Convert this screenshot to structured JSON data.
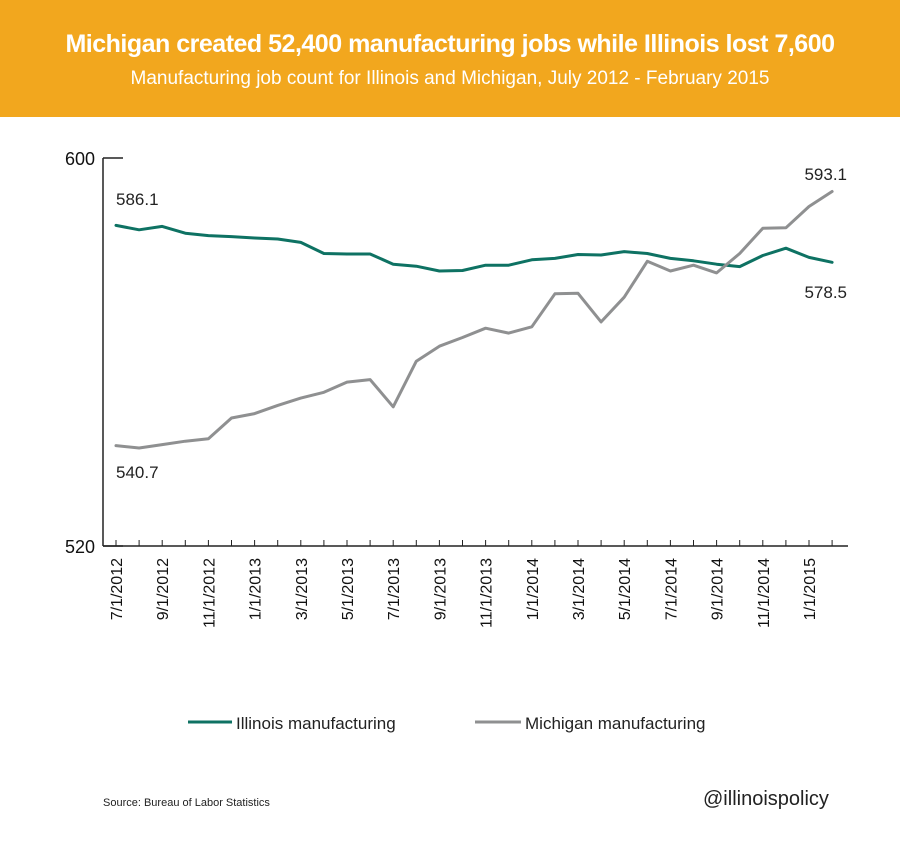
{
  "header": {
    "title": "Michigan created 52,400 manufacturing jobs while Illinois lost 7,600",
    "subtitle": "Manufacturing job count for Illinois and Michigan, July 2012 - February 2015"
  },
  "footer": {
    "source": "Source: Bureau of Labor Statistics",
    "handle": "@illinoispolicy"
  },
  "colors": {
    "banner": "#F2A71E",
    "illinois": "#0E7263",
    "michigan": "#8F9091"
  },
  "chart_data": {
    "type": "line",
    "ylim": [
      520,
      600
    ],
    "yticks": [
      "520",
      "600"
    ],
    "x": [
      "7/1/2012",
      "8/1/2012",
      "9/1/2012",
      "10/1/2012",
      "11/1/2012",
      "12/1/2012",
      "1/1/2013",
      "2/1/2013",
      "3/1/2013",
      "4/1/2013",
      "5/1/2013",
      "6/1/2013",
      "7/1/2013",
      "8/1/2013",
      "9/1/2013",
      "10/1/2013",
      "11/1/2013",
      "12/1/2013",
      "1/1/2014",
      "2/1/2014",
      "3/1/2014",
      "4/1/2014",
      "5/1/2014",
      "6/1/2014",
      "7/1/2014",
      "8/1/2014",
      "9/1/2014",
      "10/1/2014",
      "11/1/2014",
      "12/1/2014",
      "1/1/2015",
      "2/1/2015"
    ],
    "xtick_labels": [
      "7/1/2012",
      "9/1/2012",
      "11/1/2012",
      "1/1/2013",
      "3/1/2013",
      "5/1/2013",
      "7/1/2013",
      "9/1/2013",
      "11/1/2013",
      "1/1/2014",
      "3/1/2014",
      "5/1/2014",
      "7/1/2014",
      "9/1/2014",
      "11/1/2014",
      "1/1/2015"
    ],
    "series": [
      {
        "name": "Illinois manufacturing",
        "color": "#0E7263",
        "values": [
          586.1,
          585.2,
          585.9,
          584.5,
          584.0,
          583.8,
          583.5,
          583.3,
          582.6,
          580.3,
          580.2,
          580.2,
          578.1,
          577.7,
          576.7,
          576.8,
          577.9,
          577.9,
          579.0,
          579.3,
          580.1,
          580.0,
          580.7,
          580.3,
          579.3,
          578.8,
          578.1,
          577.6,
          579.9,
          581.4,
          579.5,
          578.5
        ]
      },
      {
        "name": "Michigan manufacturing",
        "color": "#8F9091",
        "values": [
          540.7,
          540.2,
          540.9,
          541.6,
          542.1,
          546.4,
          547.3,
          549.0,
          550.5,
          551.7,
          553.8,
          554.3,
          548.7,
          558.1,
          561.2,
          563.0,
          564.9,
          563.9,
          565.2,
          572.0,
          572.1,
          566.2,
          571.3,
          578.7,
          576.7,
          577.9,
          576.3,
          580.3,
          585.5,
          585.6,
          590.0,
          593.1
        ]
      }
    ],
    "annotations": [
      {
        "text": "586.1"
      },
      {
        "text": "540.7"
      },
      {
        "text": "593.1"
      },
      {
        "text": "578.5"
      }
    ],
    "legend": [
      "Illinois manufacturing",
      "Michigan manufacturing"
    ],
    "legend_position": "bottom",
    "grid": false
  }
}
